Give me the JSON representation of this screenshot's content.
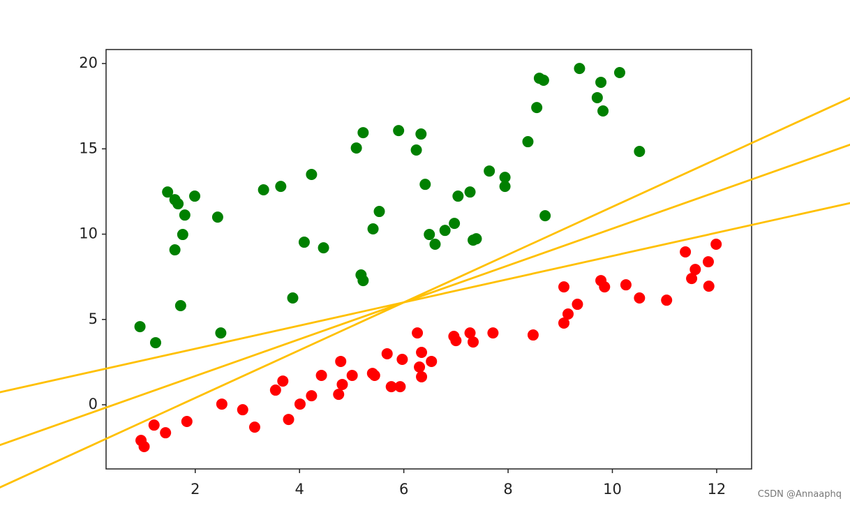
{
  "chart_data": {
    "type": "scatter",
    "xlim": [
      0.29,
      12.67
    ],
    "ylim": [
      -3.76,
      20.82
    ],
    "xticks": [
      2,
      4,
      6,
      8,
      10,
      12
    ],
    "yticks": [
      0,
      5,
      10,
      15,
      20
    ],
    "grid": false,
    "watermark": "CSDN @Annaaphq",
    "series": [
      {
        "type": "scatter",
        "color": "#008000",
        "x": [
          0.94,
          1.24,
          1.47,
          1.61,
          1.67,
          1.8,
          1.99,
          1.76,
          1.61,
          1.72,
          2.43,
          2.49,
          3.31,
          3.64,
          3.87,
          4.09,
          4.23,
          4.46,
          5.09,
          5.22,
          5.18,
          5.22,
          5.41,
          5.53,
          5.9,
          6.24,
          6.33,
          6.41,
          6.49,
          6.6,
          6.79,
          6.97,
          7.04,
          7.27,
          7.33,
          7.39,
          7.64,
          7.94,
          7.94,
          8.38,
          8.55,
          8.6,
          8.68,
          8.71,
          9.37,
          9.71,
          9.78,
          9.82,
          10.14,
          10.52
        ],
        "values": [
          4.58,
          3.64,
          12.47,
          12.02,
          11.78,
          11.12,
          12.23,
          9.98,
          9.08,
          5.81,
          11.0,
          4.21,
          12.6,
          12.8,
          6.26,
          9.53,
          13.5,
          9.2,
          15.05,
          15.95,
          7.61,
          7.28,
          10.31,
          11.33,
          16.07,
          14.93,
          15.87,
          12.92,
          9.98,
          9.41,
          10.22,
          10.63,
          12.23,
          12.47,
          9.65,
          9.73,
          13.7,
          13.33,
          12.8,
          15.42,
          17.42,
          19.14,
          19.02,
          11.08,
          19.71,
          18.0,
          18.9,
          17.22,
          19.47,
          14.85
        ]
      },
      {
        "type": "scatter",
        "color": "#ff0000",
        "x": [
          0.96,
          1.02,
          1.21,
          1.43,
          1.84,
          2.51,
          2.91,
          3.14,
          3.54,
          3.68,
          3.79,
          4.01,
          4.23,
          4.42,
          4.75,
          4.79,
          4.82,
          5.01,
          5.4,
          5.44,
          5.68,
          5.76,
          5.93,
          5.97,
          6.26,
          6.3,
          6.34,
          6.34,
          6.53,
          6.96,
          7.0,
          7.27,
          7.33,
          7.71,
          8.48,
          9.07,
          9.07,
          9.15,
          9.33,
          9.78,
          9.85,
          10.26,
          10.52,
          11.04,
          11.4,
          11.52,
          11.59,
          11.84,
          11.85,
          11.99
        ],
        "values": [
          -2.09,
          -2.45,
          -1.19,
          -1.64,
          -0.98,
          0.04,
          -0.29,
          -1.31,
          0.86,
          1.39,
          -0.86,
          0.04,
          0.53,
          1.72,
          0.61,
          2.54,
          1.19,
          1.72,
          1.84,
          1.72,
          2.99,
          1.06,
          1.06,
          2.66,
          4.21,
          2.21,
          3.07,
          1.64,
          2.54,
          4.01,
          3.76,
          4.21,
          3.68,
          4.21,
          4.09,
          6.91,
          4.79,
          5.32,
          5.89,
          7.28,
          6.91,
          7.03,
          6.26,
          6.13,
          8.96,
          7.4,
          7.93,
          8.38,
          6.95,
          9.41
        ]
      },
      {
        "type": "line",
        "color": "#ffc000",
        "x": [
          -1.8,
          14.6
        ],
        "values": [
          -4.92,
          18.04
        ]
      },
      {
        "type": "line",
        "color": "#ffc000",
        "x": [
          -1.8,
          14.6
        ],
        "values": [
          -2.42,
          15.29
        ]
      },
      {
        "type": "line",
        "color": "#ffc000",
        "x": [
          -1.8,
          14.6
        ],
        "values": [
          0.7,
          11.85
        ]
      }
    ]
  }
}
